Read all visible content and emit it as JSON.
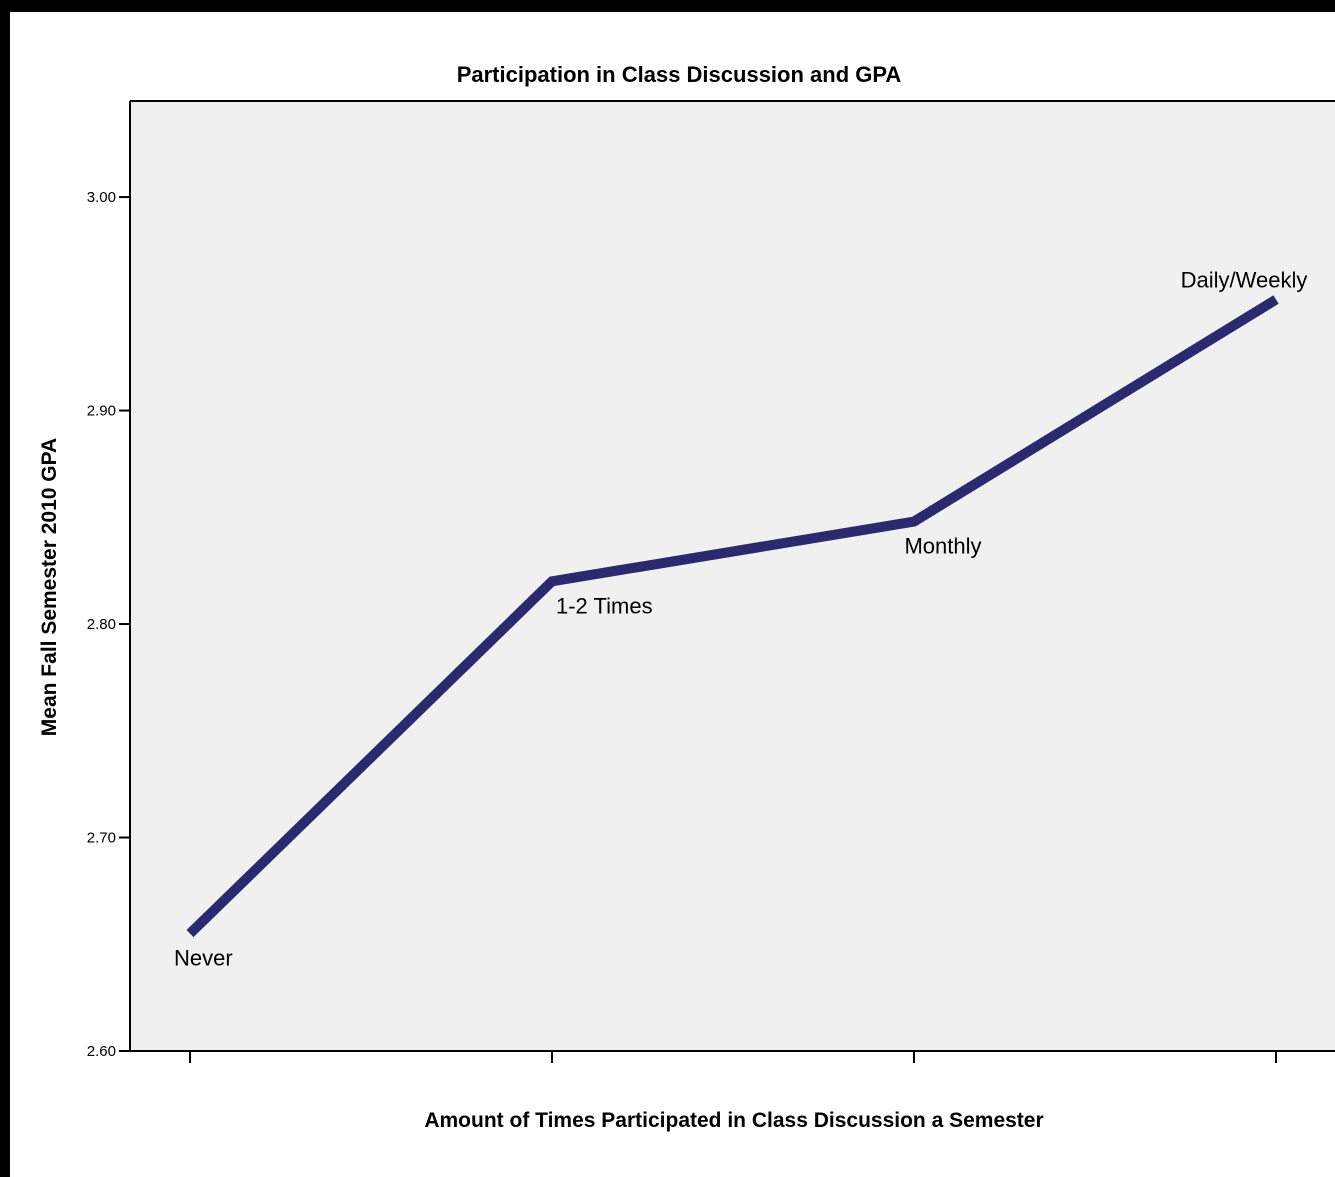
{
  "colors": {
    "plot_background": "#f0f0f0",
    "line": "#2b2a6e",
    "axis": "#000000",
    "frame": "#000000"
  },
  "chart_data": {
    "type": "line",
    "title": "Participation in Class Discussion and GPA",
    "xlabel": "Amount of Times Participated in Class Discussion a Semester",
    "ylabel": "Mean Fall Semester 2010 GPA",
    "categories": [
      "Never",
      "1-2 Times",
      "Monthly",
      "Daily/Weekly"
    ],
    "series": [
      {
        "values": [
          2.655,
          2.82,
          2.848,
          2.952
        ]
      }
    ],
    "data_labels": [
      "Never",
      "1-2 Times",
      "Monthly",
      "Daily/Weekly"
    ],
    "ylim": [
      2.6,
      3.045
    ],
    "yticks": [
      2.6,
      2.7,
      2.8,
      2.9,
      3.0
    ],
    "ytick_labels": [
      "2.60",
      "2.70",
      "2.80",
      "2.90",
      "3.00"
    ],
    "xtick_labels": [
      "",
      "",
      "",
      ""
    ],
    "grid": false,
    "legend": "none"
  }
}
